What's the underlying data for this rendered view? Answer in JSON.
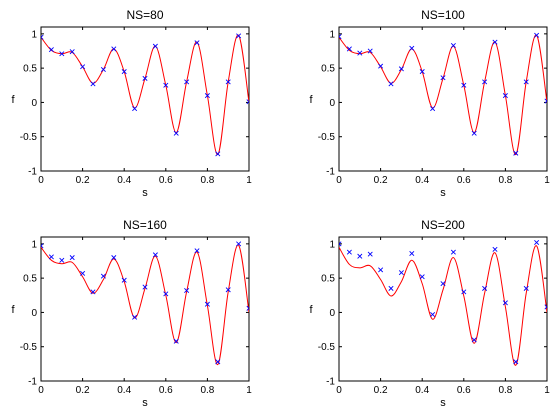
{
  "chart_data": [
    {
      "type": "line",
      "title": "NS=80",
      "xlabel": "s",
      "ylabel": "f",
      "xlim": [
        0,
        1
      ],
      "ylim": [
        -1,
        1.1
      ],
      "xticks": [
        "0",
        "0.2",
        "0.4",
        "0.6",
        "0.8",
        "1"
      ],
      "yticks": [
        "-1",
        "-0.5",
        "0",
        "0.5",
        "1"
      ],
      "grid": false,
      "series": [
        {
          "style": "solid red line",
          "x": [
            0,
            0.05,
            0.1,
            0.15,
            0.2,
            0.25,
            0.3,
            0.35,
            0.4,
            0.45,
            0.5,
            0.55,
            0.6,
            0.65,
            0.7,
            0.75,
            0.8,
            0.85,
            0.9,
            0.95,
            1.0
          ],
          "values": [
            0.95,
            0.76,
            0.71,
            0.73,
            0.52,
            0.28,
            0.48,
            0.78,
            0.45,
            -0.08,
            0.35,
            0.82,
            0.25,
            -0.44,
            0.3,
            0.88,
            0.1,
            -0.76,
            0.3,
            0.98,
            0.0
          ]
        },
        {
          "style": "blue x markers",
          "x": [
            0,
            0.05,
            0.1,
            0.15,
            0.2,
            0.25,
            0.3,
            0.35,
            0.4,
            0.45,
            0.5,
            0.55,
            0.6,
            0.65,
            0.7,
            0.75,
            0.8,
            0.85,
            0.9,
            0.95,
            1.0
          ],
          "values": [
            0.95,
            0.77,
            0.71,
            0.74,
            0.52,
            0.27,
            0.48,
            0.78,
            0.45,
            -0.09,
            0.35,
            0.82,
            0.25,
            -0.45,
            0.3,
            0.87,
            0.1,
            -0.75,
            0.3,
            0.97,
            0.01
          ]
        }
      ]
    },
    {
      "type": "line",
      "title": "NS=100",
      "xlabel": "s",
      "ylabel": "f",
      "xlim": [
        0,
        1
      ],
      "ylim": [
        -1,
        1.1
      ],
      "xticks": [
        "0",
        "0.2",
        "0.4",
        "0.6",
        "0.8",
        "1"
      ],
      "yticks": [
        "-1",
        "-0.5",
        "0",
        "0.5",
        "1"
      ],
      "grid": false,
      "series": [
        {
          "style": "solid red line",
          "x": [
            0,
            0.05,
            0.1,
            0.15,
            0.2,
            0.25,
            0.3,
            0.35,
            0.4,
            0.45,
            0.5,
            0.55,
            0.6,
            0.65,
            0.7,
            0.75,
            0.8,
            0.85,
            0.9,
            0.95,
            1.0
          ],
          "values": [
            0.95,
            0.76,
            0.71,
            0.73,
            0.52,
            0.28,
            0.48,
            0.78,
            0.45,
            -0.08,
            0.35,
            0.82,
            0.25,
            -0.44,
            0.3,
            0.88,
            0.1,
            -0.76,
            0.3,
            0.98,
            0.0
          ]
        },
        {
          "style": "blue x markers",
          "x": [
            0,
            0.05,
            0.1,
            0.15,
            0.2,
            0.25,
            0.3,
            0.35,
            0.4,
            0.45,
            0.5,
            0.55,
            0.6,
            0.65,
            0.7,
            0.75,
            0.8,
            0.85,
            0.9,
            0.95,
            1.0
          ],
          "values": [
            0.96,
            0.78,
            0.72,
            0.75,
            0.53,
            0.27,
            0.49,
            0.79,
            0.45,
            -0.09,
            0.36,
            0.83,
            0.25,
            -0.45,
            0.3,
            0.88,
            0.1,
            -0.74,
            0.3,
            0.98,
            0.02
          ]
        }
      ]
    },
    {
      "type": "line",
      "title": "NS=160",
      "xlabel": "s",
      "ylabel": "f",
      "xlim": [
        0,
        1
      ],
      "ylim": [
        -1,
        1.1
      ],
      "xticks": [
        "0",
        "0.2",
        "0.4",
        "0.6",
        "0.8",
        "1"
      ],
      "yticks": [
        "-1",
        "-0.5",
        "0",
        "0.5",
        "1"
      ],
      "grid": false,
      "series": [
        {
          "style": "solid red line",
          "x": [
            0,
            0.05,
            0.1,
            0.15,
            0.2,
            0.25,
            0.3,
            0.35,
            0.4,
            0.45,
            0.5,
            0.55,
            0.6,
            0.65,
            0.7,
            0.75,
            0.8,
            0.85,
            0.9,
            0.95,
            1.0
          ],
          "values": [
            0.95,
            0.76,
            0.71,
            0.73,
            0.52,
            0.28,
            0.48,
            0.78,
            0.45,
            -0.08,
            0.35,
            0.82,
            0.25,
            -0.44,
            0.3,
            0.88,
            0.1,
            -0.76,
            0.3,
            0.98,
            0.0
          ]
        },
        {
          "style": "blue x markers",
          "x": [
            0,
            0.05,
            0.1,
            0.15,
            0.2,
            0.25,
            0.3,
            0.35,
            0.4,
            0.45,
            0.5,
            0.55,
            0.6,
            0.65,
            0.7,
            0.75,
            0.8,
            0.85,
            0.9,
            0.95,
            1.0
          ],
          "values": [
            0.97,
            0.81,
            0.76,
            0.8,
            0.57,
            0.3,
            0.53,
            0.8,
            0.47,
            -0.07,
            0.37,
            0.84,
            0.27,
            -0.42,
            0.32,
            0.9,
            0.12,
            -0.72,
            0.33,
            1.0,
            0.06
          ]
        }
      ]
    },
    {
      "type": "line",
      "title": "NS=200",
      "xlabel": "s",
      "ylabel": "f",
      "xlim": [
        0,
        1
      ],
      "ylim": [
        -1,
        1.1
      ],
      "xticks": [
        "0",
        "0.2",
        "0.4",
        "0.6",
        "0.8",
        "1"
      ],
      "yticks": [
        "-1",
        "-0.5",
        "0",
        "0.5",
        "1"
      ],
      "grid": false,
      "series": [
        {
          "style": "solid red line",
          "x": [
            0,
            0.05,
            0.1,
            0.15,
            0.2,
            0.25,
            0.3,
            0.35,
            0.4,
            0.45,
            0.5,
            0.55,
            0.6,
            0.65,
            0.7,
            0.75,
            0.8,
            0.85,
            0.9,
            0.95,
            1.0
          ],
          "values": [
            0.95,
            0.7,
            0.65,
            0.68,
            0.48,
            0.24,
            0.45,
            0.76,
            0.42,
            -0.1,
            0.33,
            0.8,
            0.24,
            -0.45,
            0.28,
            0.87,
            0.08,
            -0.77,
            0.28,
            0.97,
            0.0
          ]
        },
        {
          "style": "blue x markers",
          "x": [
            0,
            0.05,
            0.1,
            0.15,
            0.2,
            0.25,
            0.3,
            0.35,
            0.4,
            0.45,
            0.5,
            0.55,
            0.6,
            0.65,
            0.7,
            0.75,
            0.8,
            0.85,
            0.9,
            0.95,
            1.0
          ],
          "values": [
            1.0,
            0.88,
            0.82,
            0.85,
            0.62,
            0.35,
            0.58,
            0.86,
            0.52,
            -0.03,
            0.42,
            0.88,
            0.3,
            -0.4,
            0.35,
            0.92,
            0.14,
            -0.72,
            0.35,
            1.02,
            0.08
          ]
        }
      ]
    }
  ]
}
